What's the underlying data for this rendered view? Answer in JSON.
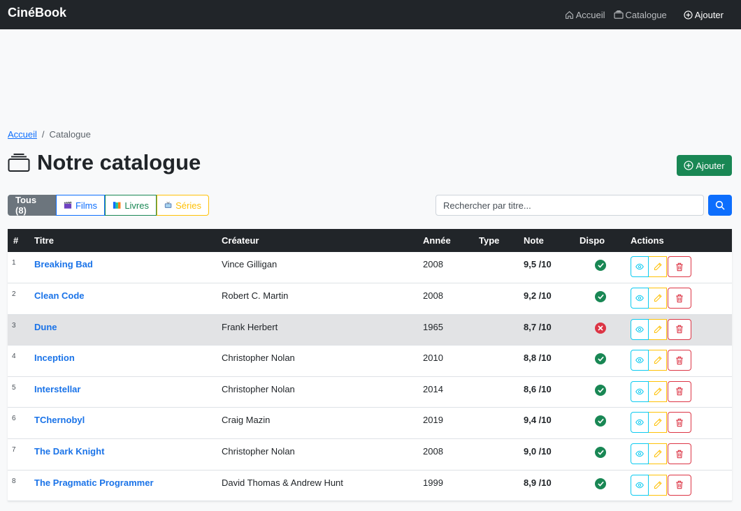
{
  "nav": {
    "brand": "CinéBook",
    "home": "Accueil",
    "catalogue": "Catalogue",
    "add": "Ajouter"
  },
  "breadcrumb": {
    "home": "Accueil",
    "sep": "/",
    "current": "Catalogue"
  },
  "page": {
    "title": "Notre catalogue",
    "add_button": "Ajouter"
  },
  "filters": {
    "all": "Tous (8)",
    "films": "Films",
    "books": "Livres",
    "series": "Séries"
  },
  "search": {
    "placeholder": "Rechercher par titre...",
    "value": ""
  },
  "table": {
    "headers": {
      "idx": "#",
      "title": "Titre",
      "creator": "Créateur",
      "year": "Année",
      "type": "Type",
      "rating": "Note",
      "available": "Dispo",
      "actions": "Actions"
    },
    "rows": [
      {
        "idx": "1",
        "title": "Breaking Bad",
        "creator": "Vince Gilligan",
        "year": "2008",
        "type": "",
        "rating": "9,5 /10",
        "available": true
      },
      {
        "idx": "2",
        "title": "Clean Code",
        "creator": "Robert C. Martin",
        "year": "2008",
        "type": "",
        "rating": "9,2 /10",
        "available": true
      },
      {
        "idx": "3",
        "title": "Dune",
        "creator": "Frank Herbert",
        "year": "1965",
        "type": "",
        "rating": "8,7 /10",
        "available": false
      },
      {
        "idx": "4",
        "title": "Inception",
        "creator": "Christopher Nolan",
        "year": "2010",
        "type": "",
        "rating": "8,8 /10",
        "available": true
      },
      {
        "idx": "5",
        "title": "Interstellar",
        "creator": "Christopher Nolan",
        "year": "2014",
        "type": "",
        "rating": "8,6 /10",
        "available": true
      },
      {
        "idx": "6",
        "title": "TChernobyl",
        "creator": "Craig Mazin",
        "year": "2019",
        "type": "",
        "rating": "9,4 /10",
        "available": true
      },
      {
        "idx": "7",
        "title": "The Dark Knight",
        "creator": "Christopher Nolan",
        "year": "2008",
        "type": "",
        "rating": "9,0 /10",
        "available": true
      },
      {
        "idx": "8",
        "title": "The Pragmatic Programmer",
        "creator": "David Thomas & Andrew Hunt",
        "year": "1999",
        "type": "",
        "rating": "8,9 /10",
        "available": true
      }
    ]
  },
  "colors": {
    "navbar": "#212529",
    "primary": "#0d6efd",
    "success": "#198754",
    "danger": "#dc3545",
    "warning": "#ffc107",
    "info": "#0dcaf0",
    "link": "#1a73e8"
  },
  "icons": {
    "home": "house-icon",
    "catalogue": "collection-icon",
    "add": "plus-circle-icon",
    "search": "search-icon",
    "view": "eye-icon",
    "edit": "pencil-icon",
    "delete": "trash-icon",
    "ok": "check-circle-icon",
    "ko": "x-circle-icon"
  }
}
